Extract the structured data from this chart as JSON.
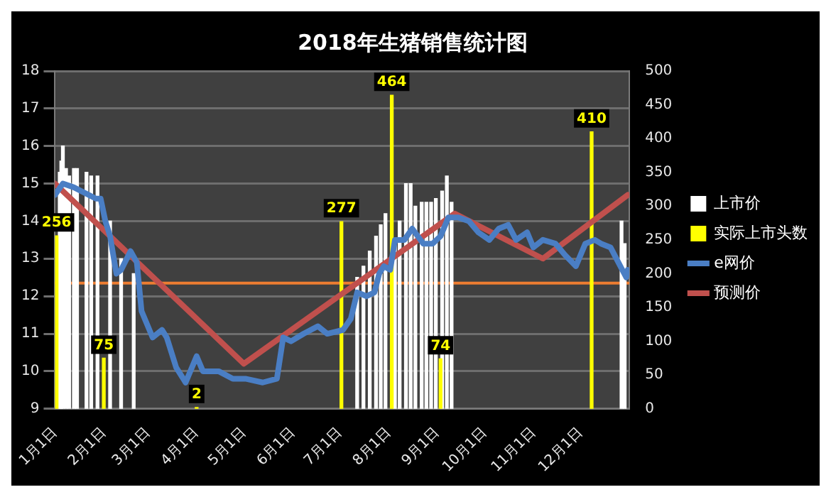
{
  "chart_data": {
    "type": "bar",
    "title": "2018年生猪销售统计图",
    "xlim": [
      "2018-01-01",
      "2019-01-01"
    ],
    "xticks": [
      {
        "value": "2018-01-01",
        "label": "1月1日"
      },
      {
        "value": "2018-02-01",
        "label": "2月1日"
      },
      {
        "value": "2018-03-01",
        "label": "3月1日"
      },
      {
        "value": "2018-04-01",
        "label": "4月1日"
      },
      {
        "value": "2018-05-01",
        "label": "5月1日"
      },
      {
        "value": "2018-06-01",
        "label": "6月1日"
      },
      {
        "value": "2018-07-01",
        "label": "7月1日"
      },
      {
        "value": "2018-08-01",
        "label": "8月1日"
      },
      {
        "value": "2018-09-01",
        "label": "9月1日"
      },
      {
        "value": "2018-10-01",
        "label": "10月1日"
      },
      {
        "value": "2018-11-01",
        "label": "11月1日"
      },
      {
        "value": "2018-12-01",
        "label": "12月1日"
      }
    ],
    "ylim": [
      9,
      18
    ],
    "yticks": [
      9,
      10,
      11,
      12,
      13,
      14,
      15,
      16,
      17,
      18
    ],
    "y2lim": [
      0,
      500
    ],
    "y2ticks": [
      0,
      50,
      100,
      150,
      200,
      250,
      300,
      350,
      400,
      450,
      500
    ],
    "grid": "y",
    "legend": "right",
    "ref_lines": [
      {
        "axis": "y",
        "value": 12.35,
        "color": "#ed7d31"
      }
    ],
    "series": [
      {
        "name": "上市价",
        "color": "#ffffff",
        "x": [
          "2018-01-04",
          "2018-01-05",
          "2018-01-06",
          "2018-01-08",
          "2018-01-10",
          "2018-01-13",
          "2018-01-15",
          "2018-01-21",
          "2018-01-24",
          "2018-01-28",
          "2018-02-05",
          "2018-02-12",
          "2018-02-20",
          "2018-07-12",
          "2018-07-16",
          "2018-07-20",
          "2018-07-24",
          "2018-07-27",
          "2018-07-30",
          "2018-08-05",
          "2018-08-08",
          "2018-08-12",
          "2018-08-15",
          "2018-08-18",
          "2018-08-22",
          "2018-08-25",
          "2018-08-28",
          "2018-08-31",
          "2018-09-04",
          "2018-09-07",
          "2018-09-10",
          "2018-12-27",
          "2018-12-29"
        ],
        "values": [
          15.3,
          15.6,
          16.0,
          15.4,
          15.2,
          15.4,
          15.4,
          15.3,
          15.2,
          15.2,
          14.0,
          13.0,
          12.6,
          12.5,
          12.8,
          13.2,
          13.6,
          13.9,
          14.2,
          13.4,
          14.0,
          15.0,
          15.0,
          14.4,
          14.5,
          14.5,
          14.5,
          14.6,
          14.8,
          15.2,
          14.5,
          14.0,
          13.4
        ]
      },
      {
        "name": "实际上市头数",
        "axis": "y2",
        "color": "#ffff00",
        "x": [
          "2018-01-02",
          "2018-02-01",
          "2018-04-01",
          "2018-07-02",
          "2018-08-03",
          "2018-09-03",
          "2018-12-08"
        ],
        "values": [
          256,
          75,
          2,
          277,
          464,
          74,
          410
        ],
        "value_labels": [
          "256",
          "75",
          "2",
          "277",
          "464",
          "74",
          "410"
        ]
      },
      {
        "name": "e网价",
        "type": "line",
        "color": "#4a7ec4",
        "x": [
          "2018-01-01",
          "2018-01-06",
          "2018-01-13",
          "2018-01-27",
          "2018-01-30",
          "2018-02-02",
          "2018-02-05",
          "2018-02-09",
          "2018-02-12",
          "2018-02-18",
          "2018-02-22",
          "2018-02-25",
          "2018-03-04",
          "2018-03-10",
          "2018-03-13",
          "2018-03-19",
          "2018-03-25",
          "2018-04-01",
          "2018-04-05",
          "2018-04-15",
          "2018-04-24",
          "2018-05-02",
          "2018-05-13",
          "2018-05-22",
          "2018-05-26",
          "2018-05-31",
          "2018-06-08",
          "2018-06-17",
          "2018-06-23",
          "2018-07-03",
          "2018-07-08",
          "2018-07-12",
          "2018-07-18",
          "2018-07-23",
          "2018-07-26",
          "2018-07-29",
          "2018-08-02",
          "2018-08-05",
          "2018-08-11",
          "2018-08-16",
          "2018-08-23",
          "2018-08-29",
          "2018-09-03",
          "2018-09-08",
          "2018-09-14",
          "2018-09-21",
          "2018-09-27",
          "2018-10-04",
          "2018-10-10",
          "2018-10-16",
          "2018-10-21",
          "2018-10-28",
          "2018-11-01",
          "2018-11-07",
          "2018-11-15",
          "2018-11-21",
          "2018-11-28",
          "2018-12-04",
          "2018-12-10",
          "2018-12-14",
          "2018-12-20",
          "2018-12-25",
          "2018-12-30",
          "2018-12-31"
        ],
        "values": [
          14.7,
          15.0,
          14.9,
          14.6,
          14.6,
          14.0,
          13.6,
          12.6,
          12.7,
          13.2,
          12.9,
          11.6,
          10.9,
          11.1,
          10.9,
          10.1,
          9.7,
          10.4,
          10.0,
          10.0,
          9.8,
          9.8,
          9.7,
          9.8,
          10.9,
          10.8,
          11.0,
          11.2,
          11.0,
          11.1,
          11.4,
          12.1,
          12.0,
          12.1,
          12.6,
          12.8,
          12.7,
          13.5,
          13.5,
          13.8,
          13.4,
          13.4,
          13.6,
          14.1,
          14.1,
          14.0,
          13.7,
          13.5,
          13.8,
          13.9,
          13.5,
          13.7,
          13.3,
          13.5,
          13.4,
          13.1,
          12.8,
          13.4,
          13.5,
          13.4,
          13.3,
          12.9,
          12.5,
          12.7
        ]
      },
      {
        "name": "预测价",
        "type": "line",
        "color": "#c0504d",
        "x": [
          "2018-01-01",
          "2018-05-01",
          "2018-09-12",
          "2018-11-07",
          "2018-12-31"
        ],
        "values": [
          15.0,
          10.2,
          14.2,
          13.0,
          14.7
        ]
      }
    ]
  }
}
